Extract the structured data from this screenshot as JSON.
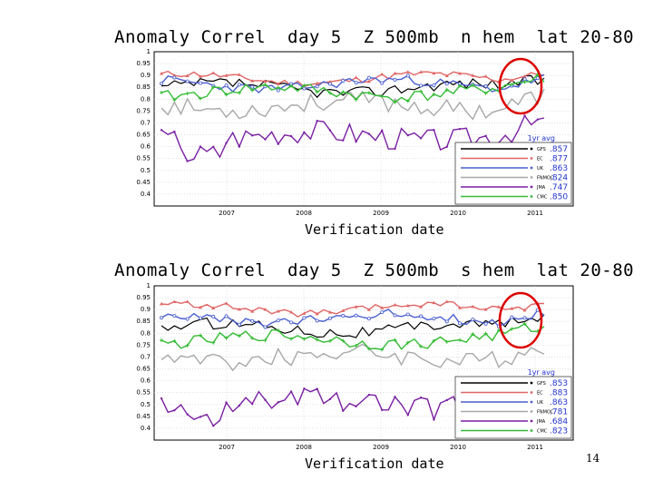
{
  "page": {
    "number": "14"
  },
  "chart_data": [
    {
      "type": "line",
      "title": "Anomaly Correl  day 5  Z 500mb  n hem  lat 20-80",
      "xlabel": "Verification date",
      "ylabel": "",
      "ylim": [
        0.35,
        1.0
      ],
      "yticks": [
        "1",
        "0.95",
        "0.9",
        "0.85",
        "0.8",
        "0.75",
        "0.7",
        "0.65",
        "0.6",
        "0.55",
        "0.5",
        "0.45",
        "0.4"
      ],
      "xticks": [
        "2007",
        "2008",
        "2009",
        "2010",
        "2011"
      ],
      "legend_title": "1yr avg",
      "series": [
        {
          "name": "GFS",
          "color": "#000000",
          "avg": ".857"
        },
        {
          "name": "EC",
          "color": "#e06666",
          "avg": ".877"
        },
        {
          "name": "UK",
          "color": "#4a5fd0",
          "avg": ".863"
        },
        {
          "name": "FNMOC",
          "color": "#a8a8a8",
          "avg": ".824"
        },
        {
          "name": "JMA",
          "color": "#7a1fa2",
          "avg": ".747"
        },
        {
          "name": "CMC",
          "color": "#33bb33",
          "avg": ".850"
        }
      ]
    },
    {
      "type": "line",
      "title": "Anomaly Correl  day 5  Z 500mb  s hem  lat 20-80",
      "xlabel": "Verification date",
      "ylabel": "",
      "ylim": [
        0.35,
        1.0
      ],
      "yticks": [
        "1",
        "0.95",
        "0.9",
        "0.85",
        "0.8",
        "0.75",
        "0.7",
        "0.65",
        "0.6",
        "0.55",
        "0.5",
        "0.45",
        "0.4"
      ],
      "xticks": [
        "2007",
        "2008",
        "2009",
        "2010",
        "2011"
      ],
      "legend_title": "1yr avg",
      "series": [
        {
          "name": "GFS",
          "color": "#000000",
          "avg": ".853"
        },
        {
          "name": "EC",
          "color": "#e06666",
          "avg": ".883"
        },
        {
          "name": "UK",
          "color": "#4a5fd0",
          "avg": ".863"
        },
        {
          "name": "FNMOC",
          "color": "#a8a8a8",
          "avg": ".781"
        },
        {
          "name": "JMA",
          "color": "#7a1fa2",
          "avg": ".684"
        },
        {
          "name": "CMC",
          "color": "#33bb33",
          "avg": ".823"
        }
      ]
    }
  ]
}
